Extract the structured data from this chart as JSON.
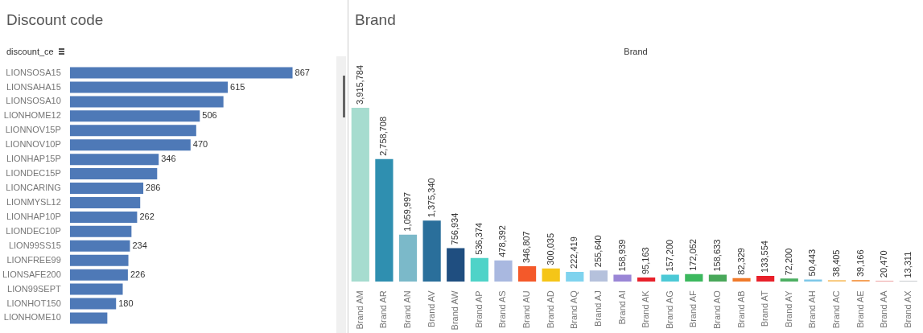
{
  "chart_data": [
    {
      "type": "bar",
      "title": "Discount code",
      "ylabel": "discount_ce",
      "orientation": "horizontal",
      "tick_labels": "y",
      "categories": [
        "LIONSOSA15",
        "LIONSAHA15",
        "LIONSOSA10",
        "LIONHOME12",
        "LIONNOV15P",
        "LIONNOV10P",
        "LIONHAP15P",
        "LIONDEC15P",
        "LIONCARING",
        "LIONMYSL12",
        "LIONHAP10P",
        "LIONDEC10P",
        "LION99SS15",
        "LIONFREE99",
        "LIONSAFE200",
        "LION99SEPT",
        "LIONHOT150",
        "LIONHOME10"
      ],
      "values": [
        867,
        615,
        598,
        506,
        492,
        470,
        346,
        340,
        286,
        274,
        262,
        240,
        234,
        228,
        226,
        206,
        180,
        146
      ],
      "value_labels": [
        "867",
        "615",
        null,
        "506",
        null,
        "470",
        "346",
        null,
        "286",
        null,
        "262",
        null,
        "234",
        null,
        "226",
        null,
        "180",
        null
      ],
      "color": "#4e79b7"
    },
    {
      "type": "bar",
      "title": "Brand",
      "xlabel": "Brand",
      "tick_labels": "x",
      "value_labels": [
        "3,915,784",
        "2,758,708",
        "1,059,997",
        "1,375,340",
        "756,934",
        "536,374",
        "478,392",
        "346,807",
        "300,035",
        "222,419",
        "255,640",
        "158,939",
        "95,163",
        "157,200",
        "172,052",
        "158,633",
        "82,329",
        "133,554",
        "72,200",
        "50,443",
        "38,405",
        "39,166",
        "20,470",
        "13,311"
      ],
      "categories": [
        "Brand AM",
        "Brand AR",
        "Brand AN",
        "Brand AV",
        "Brand AW",
        "Brand AP",
        "Brand AS",
        "Brand AU",
        "Brand AD",
        "Brand AQ",
        "Brand AJ",
        "Brand AI",
        "Brand AK",
        "Brand AG",
        "Brand AF",
        "Brand AO",
        "Brand AB",
        "Brand AT",
        "Brand AY",
        "Brand AH",
        "Brand AC",
        "Brand AE",
        "Brand AA",
        "Brand AX"
      ],
      "values": [
        3915784,
        2758708,
        1059997,
        1375340,
        756934,
        536374,
        478392,
        346807,
        300035,
        222419,
        255640,
        158939,
        95163,
        157200,
        172052,
        158633,
        82329,
        133554,
        72200,
        50443,
        38405,
        39166,
        20470,
        13311
      ],
      "colors": [
        "#a6dccf",
        "#2f8fb0",
        "#7bb9c9",
        "#2a6f9b",
        "#1f4e80",
        "#4fd3c8",
        "#a9b8e0",
        "#f4592a",
        "#f5c518",
        "#7fd3ee",
        "#b5c1dc",
        "#9a86d6",
        "#e8212b",
        "#4cc9d6",
        "#3cb85e",
        "#49a85a",
        "#f07a2a",
        "#e8202a",
        "#4caf62",
        "#7ec8e8",
        "#f7c26b",
        "#f5a35c",
        "#e88a8a",
        "#9aa0a6"
      ]
    }
  ]
}
